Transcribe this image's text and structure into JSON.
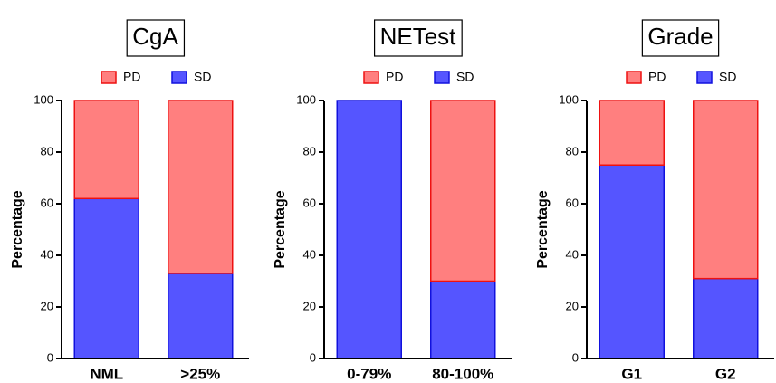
{
  "chart_data": [
    {
      "type": "stacked-bar",
      "title": "CgA",
      "ylabel": "Percentage",
      "categories": [
        "NML",
        ">25%"
      ],
      "series": [
        {
          "name": "PD",
          "color": "#ff7f7f",
          "edgecolor": "#ee1111",
          "values": [
            38,
            67
          ]
        },
        {
          "name": "SD",
          "color": "#5555ff",
          "edgecolor": "#1111dd",
          "values": [
            62,
            33
          ]
        }
      ],
      "ylim": [
        0,
        100
      ],
      "yticks": [
        0,
        20,
        40,
        60,
        80,
        100
      ]
    },
    {
      "type": "stacked-bar",
      "title": "NETest",
      "ylabel": "Percentage",
      "categories": [
        "0-79%",
        "80-100%"
      ],
      "series": [
        {
          "name": "PD",
          "color": "#ff7f7f",
          "edgecolor": "#ee1111",
          "values": [
            0,
            70
          ]
        },
        {
          "name": "SD",
          "color": "#5555ff",
          "edgecolor": "#1111dd",
          "values": [
            100,
            30
          ]
        }
      ],
      "ylim": [
        0,
        100
      ],
      "yticks": [
        0,
        20,
        40,
        60,
        80,
        100
      ]
    },
    {
      "type": "stacked-bar",
      "title": "Grade",
      "ylabel": "Percentage",
      "categories": [
        "G1",
        "G2"
      ],
      "series": [
        {
          "name": "PD",
          "color": "#ff7f7f",
          "edgecolor": "#ee1111",
          "values": [
            25,
            69
          ]
        },
        {
          "name": "SD",
          "color": "#5555ff",
          "edgecolor": "#1111dd",
          "values": [
            75,
            31
          ]
        }
      ],
      "ylim": [
        0,
        100
      ],
      "yticks": [
        0,
        20,
        40,
        60,
        80,
        100
      ]
    }
  ]
}
